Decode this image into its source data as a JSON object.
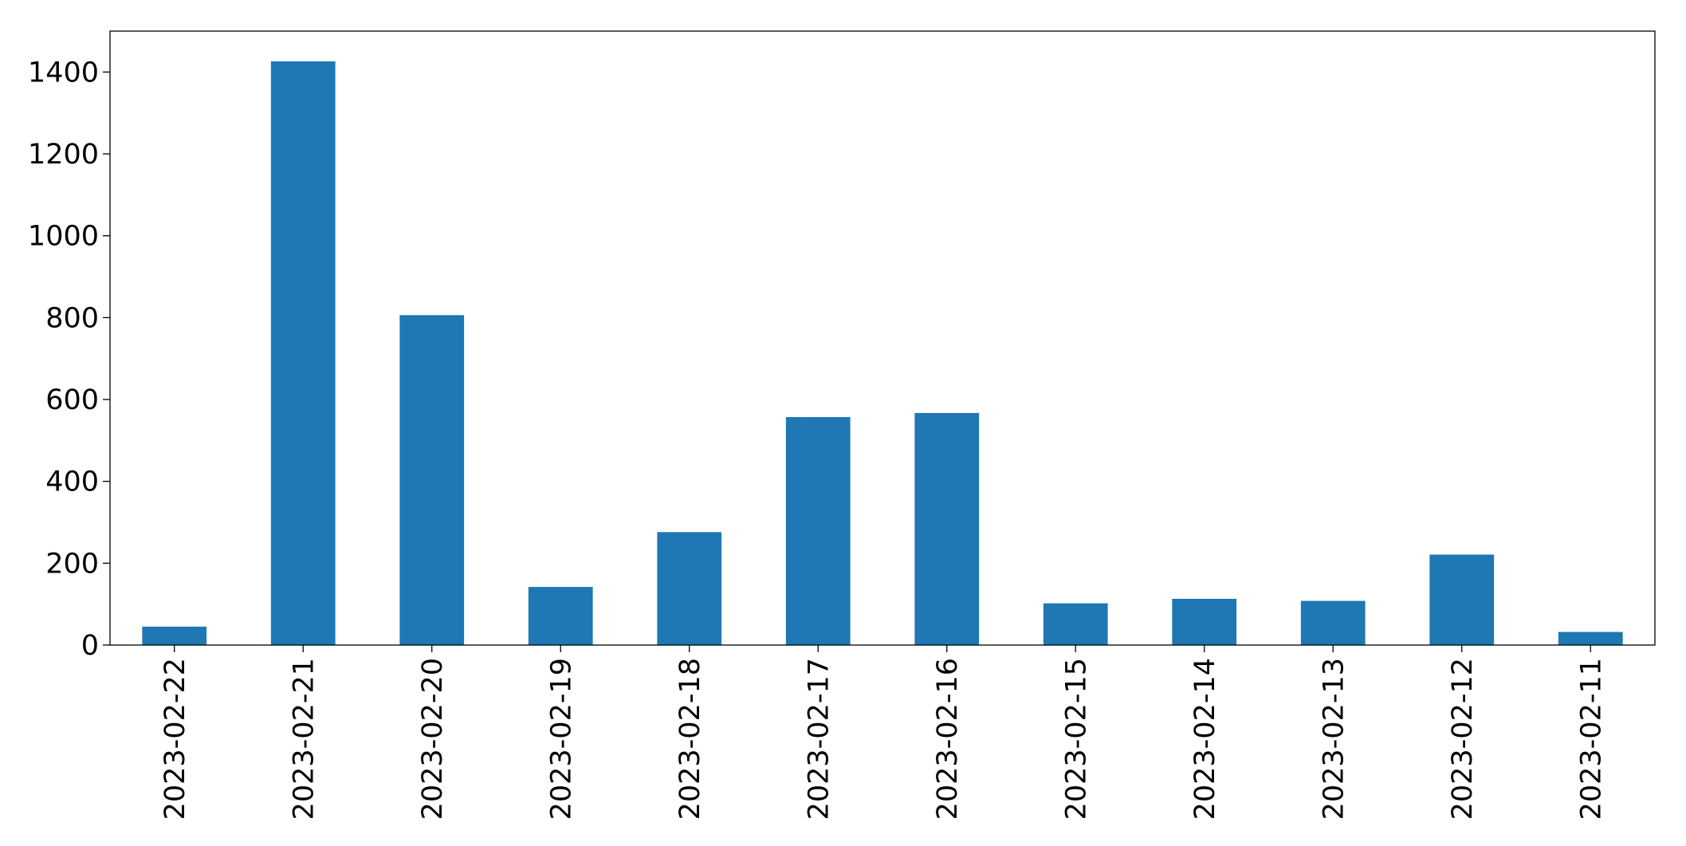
{
  "chart_data": {
    "type": "bar",
    "categories": [
      "2023-02-22",
      "2023-02-21",
      "2023-02-20",
      "2023-02-19",
      "2023-02-18",
      "2023-02-17",
      "2023-02-16",
      "2023-02-15",
      "2023-02-14",
      "2023-02-13",
      "2023-02-12",
      "2023-02-11"
    ],
    "values": [
      45,
      1426,
      806,
      142,
      276,
      557,
      567,
      102,
      113,
      108,
      221,
      32
    ],
    "color": "#1f77b4",
    "ylim": [
      0,
      1500
    ],
    "yticks": [
      0,
      200,
      400,
      600,
      800,
      1000,
      1200,
      1400
    ],
    "grid": false
  }
}
